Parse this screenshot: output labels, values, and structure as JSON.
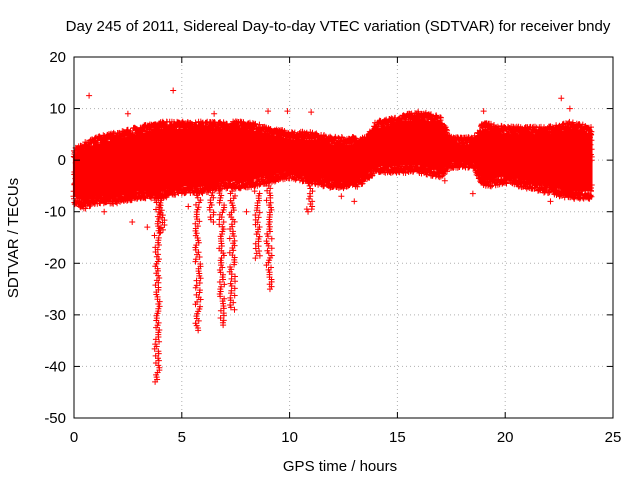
{
  "chart_data": {
    "type": "scatter",
    "title": "Day 245 of 2011, Sidereal Day-to-day VTEC variation (SDTVAR) for receiver bndy",
    "xlabel": "GPS time / hours",
    "ylabel": "SDTVAR / TECUs",
    "xlim": [
      0,
      25
    ],
    "ylim": [
      -50,
      20
    ],
    "xticks": [
      0,
      5,
      10,
      15,
      20,
      25
    ],
    "yticks": [
      -50,
      -40,
      -30,
      -20,
      -10,
      0,
      10,
      20
    ],
    "grid": true,
    "marker": "+",
    "color": "#ff0000",
    "series": [
      {
        "name": "SDTVAR",
        "band": [
          {
            "x": 0.0,
            "low": -7,
            "high": 1
          },
          {
            "x": 0.5,
            "low": -8,
            "high": 2
          },
          {
            "x": 1.0,
            "low": -7,
            "high": 3
          },
          {
            "x": 2.0,
            "low": -7,
            "high": 4
          },
          {
            "x": 3.0,
            "low": -6,
            "high": 5
          },
          {
            "x": 4.0,
            "low": -6,
            "high": 6
          },
          {
            "x": 5.0,
            "low": -5,
            "high": 6
          },
          {
            "x": 6.0,
            "low": -5,
            "high": 6
          },
          {
            "x": 7.0,
            "low": -4,
            "high": 6
          },
          {
            "x": 8.0,
            "low": -4,
            "high": 6
          },
          {
            "x": 9.0,
            "low": -3,
            "high": 5
          },
          {
            "x": 10.0,
            "low": -2,
            "high": 4
          },
          {
            "x": 11.0,
            "low": -3,
            "high": 4
          },
          {
            "x": 12.0,
            "low": -4,
            "high": 3
          },
          {
            "x": 13.0,
            "low": -4,
            "high": 3
          },
          {
            "x": 13.5,
            "low": -3,
            "high": 3
          },
          {
            "x": 14.0,
            "low": -1,
            "high": 6
          },
          {
            "x": 15.0,
            "low": -1,
            "high": 7
          },
          {
            "x": 16.0,
            "low": -1,
            "high": 8
          },
          {
            "x": 17.0,
            "low": -2,
            "high": 7
          },
          {
            "x": 17.5,
            "low": 0,
            "high": 3
          },
          {
            "x": 18.5,
            "low": 0,
            "high": 3
          },
          {
            "x": 19.0,
            "low": -4,
            "high": 6
          },
          {
            "x": 20.0,
            "low": -3,
            "high": 5
          },
          {
            "x": 21.0,
            "low": -4,
            "high": 5
          },
          {
            "x": 22.0,
            "low": -5,
            "high": 5
          },
          {
            "x": 23.0,
            "low": -6,
            "high": 6
          },
          {
            "x": 24.0,
            "low": -6,
            "high": 5
          }
        ],
        "excursions": [
          {
            "x": 3.85,
            "low": -43,
            "high": -5
          },
          {
            "x": 4.1,
            "low": -14,
            "high": -4
          },
          {
            "x": 5.75,
            "low": -33,
            "high": -5
          },
          {
            "x": 6.4,
            "low": -12,
            "high": -4
          },
          {
            "x": 6.85,
            "low": -32,
            "high": -5
          },
          {
            "x": 7.35,
            "low": -29,
            "high": -6
          },
          {
            "x": 8.5,
            "low": -19,
            "high": -6
          },
          {
            "x": 9.05,
            "low": -25,
            "high": -5
          },
          {
            "x": 10.95,
            "low": -10,
            "high": -3
          }
        ],
        "outliers": [
          {
            "x": 0.7,
            "y": 12.5
          },
          {
            "x": 4.6,
            "y": 13.5
          },
          {
            "x": 2.5,
            "y": 9
          },
          {
            "x": 6.5,
            "y": 9
          },
          {
            "x": 9.0,
            "y": 9.5
          },
          {
            "x": 9.9,
            "y": 9.5
          },
          {
            "x": 11.0,
            "y": 9.3
          },
          {
            "x": 19.0,
            "y": 9.5
          },
          {
            "x": 22.6,
            "y": 12
          },
          {
            "x": 23.0,
            "y": 10
          },
          {
            "x": 1.4,
            "y": -10
          },
          {
            "x": 2.7,
            "y": -12
          },
          {
            "x": 3.4,
            "y": -13
          },
          {
            "x": 5.3,
            "y": -9
          },
          {
            "x": 8.0,
            "y": -10
          },
          {
            "x": 10.8,
            "y": -9.5
          },
          {
            "x": 12.4,
            "y": -7
          },
          {
            "x": 13.0,
            "y": -8
          },
          {
            "x": 17.2,
            "y": -4
          },
          {
            "x": 18.5,
            "y": -6.5
          },
          {
            "x": 21.0,
            "y": -5.5
          },
          {
            "x": 22.1,
            "y": -8
          },
          {
            "x": 23.2,
            "y": -7.5
          },
          {
            "x": 23.9,
            "y": -7.5
          }
        ]
      }
    ]
  }
}
